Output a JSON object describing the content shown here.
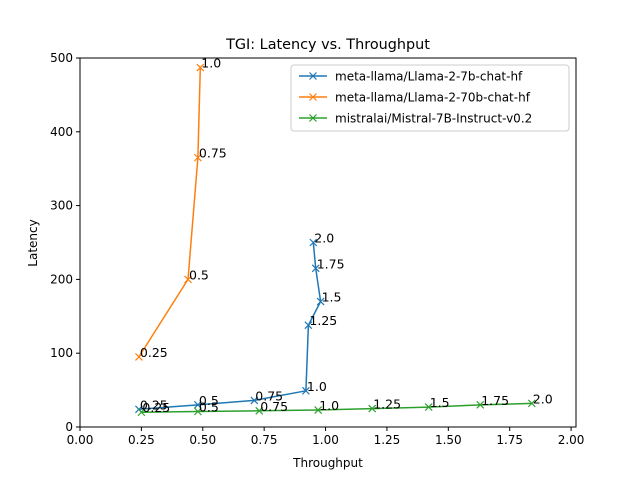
{
  "chart_data": {
    "type": "line",
    "title": "TGI: Latency vs. Throughput",
    "xlabel": "Throughput",
    "ylabel": "Latency",
    "xlim": [
      0.0,
      2.02
    ],
    "ylim": [
      0,
      500
    ],
    "xticks": [
      "0.00",
      "0.25",
      "0.50",
      "0.75",
      "1.00",
      "1.25",
      "1.50",
      "1.75",
      "2.00"
    ],
    "yticks": [
      "0",
      "100",
      "200",
      "300",
      "400",
      "500"
    ],
    "grid": false,
    "legend_position": "top-right",
    "marker": "x",
    "series": [
      {
        "name": "meta-llama/Llama-2-7b-chat-hf",
        "color": "#1f77b4",
        "x": [
          0.24,
          0.48,
          0.71,
          0.92,
          0.93,
          0.98,
          0.96,
          0.95
        ],
        "y": [
          24,
          30,
          36,
          49,
          138,
          170,
          215,
          250
        ],
        "point_labels": [
          "0.25",
          "0.5",
          "0.75",
          "1.0",
          "1.25",
          "1.5",
          "1.75",
          "2.0"
        ]
      },
      {
        "name": "meta-llama/Llama-2-70b-chat-hf",
        "color": "#ff7f0e",
        "x": [
          0.24,
          0.44,
          0.48,
          0.49
        ],
        "y": [
          95,
          200,
          365,
          487
        ],
        "point_labels": [
          "0.25",
          "0.5",
          "0.75",
          "1.0"
        ]
      },
      {
        "name": "mistralai/Mistral-7B-Instruct-v0.2",
        "color": "#2ca02c",
        "x": [
          0.25,
          0.48,
          0.73,
          0.97,
          1.19,
          1.42,
          1.63,
          1.84
        ],
        "y": [
          20,
          21,
          22,
          23,
          25,
          27,
          30,
          32
        ],
        "point_labels": [
          "0.25",
          "0.5",
          "0.75",
          "1.0",
          "1.25",
          "1.5",
          "1.75",
          "2.0"
        ]
      }
    ]
  }
}
